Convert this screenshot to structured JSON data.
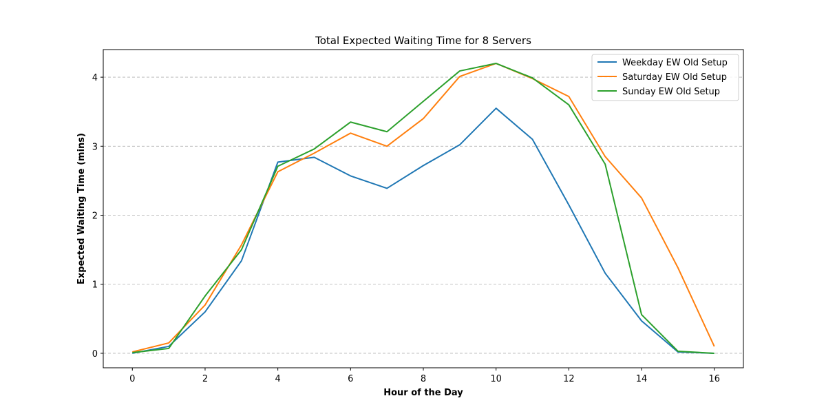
{
  "chart_data": {
    "type": "line",
    "title": "Total Expected Waiting Time for 8 Servers",
    "xlabel": "Hour of the Day",
    "ylabel": "Expected Waiting Time (mins)",
    "xlim": [
      -0.8,
      16.8
    ],
    "ylim": [
      -0.21,
      4.4
    ],
    "xticks": [
      0,
      2,
      4,
      6,
      8,
      10,
      12,
      14,
      16
    ],
    "yticks": [
      0,
      1,
      2,
      3,
      4
    ],
    "grid": "y-dashed",
    "legend_position": "top-right",
    "x": [
      0,
      1,
      2,
      3,
      4,
      5,
      6,
      7,
      8,
      9,
      10,
      11,
      12,
      13,
      14,
      15,
      16
    ],
    "series": [
      {
        "name": "Weekday EW Old Setup",
        "color": "#1f77b4",
        "values": [
          0.0,
          0.1,
          0.6,
          1.34,
          2.77,
          2.84,
          2.57,
          2.39,
          2.72,
          3.02,
          3.55,
          3.1,
          2.15,
          1.16,
          0.47,
          0.02,
          0.0
        ]
      },
      {
        "name": "Saturday EW Old Setup",
        "color": "#ff7f0e",
        "values": [
          0.02,
          0.15,
          0.7,
          1.57,
          2.63,
          2.9,
          3.19,
          3.0,
          3.4,
          4.01,
          4.2,
          3.98,
          3.72,
          2.85,
          2.25,
          1.24,
          0.1
        ]
      },
      {
        "name": "Sunday EW Old Setup",
        "color": "#2ca02c",
        "values": [
          0.01,
          0.07,
          0.83,
          1.5,
          2.71,
          2.96,
          3.35,
          3.21,
          3.65,
          4.09,
          4.2,
          3.99,
          3.6,
          2.74,
          0.56,
          0.03,
          0.0
        ]
      }
    ]
  }
}
